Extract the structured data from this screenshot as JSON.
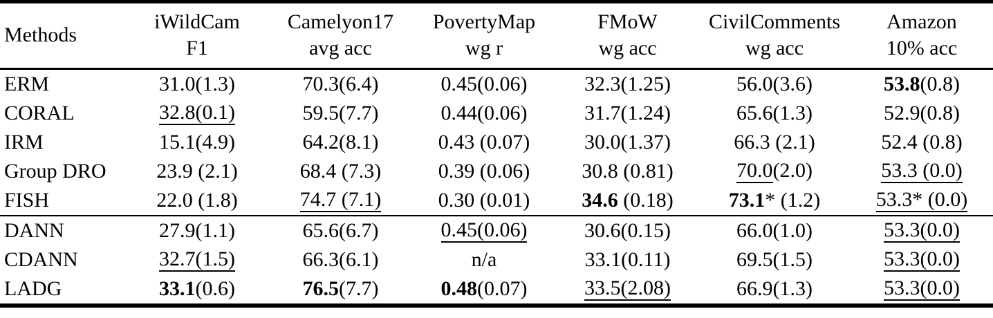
{
  "page": {
    "background_color": "#ffffff",
    "text_color": "#000000",
    "rule_color": "#000000"
  },
  "table": {
    "columns": [
      {
        "id": "methods",
        "line1": "Methods",
        "line2": ""
      },
      {
        "id": "iwildcam",
        "line1": "iWildCam",
        "line2": "F1"
      },
      {
        "id": "camelyon17",
        "line1": "Camelyon17",
        "line2": "avg acc"
      },
      {
        "id": "povertymap",
        "line1": "PovertyMap",
        "line2": "wg r"
      },
      {
        "id": "fmow",
        "line1": "FMoW",
        "line2": "wg acc"
      },
      {
        "id": "civilcomments",
        "line1": "CivilComments",
        "line2": "wg acc"
      },
      {
        "id": "amazon",
        "line1": "Amazon",
        "line2": "10% acc"
      }
    ],
    "rows": [
      {
        "method": "ERM",
        "group_end": false,
        "cells": [
          [
            {
              "text": "31.0(1.3)"
            }
          ],
          [
            {
              "text": "70.3(6.4)"
            }
          ],
          [
            {
              "text": "0.45(0.06)"
            }
          ],
          [
            {
              "text": "32.3(1.25)"
            }
          ],
          [
            {
              "text": "56.0(3.6)"
            }
          ],
          [
            {
              "text": "53.8",
              "bold": true
            },
            {
              "text": "(0.8)"
            }
          ]
        ]
      },
      {
        "method": "CORAL",
        "group_end": false,
        "cells": [
          [
            {
              "text": "32.8(0.1)",
              "underline": true
            }
          ],
          [
            {
              "text": "59.5(7.7)"
            }
          ],
          [
            {
              "text": "0.44(0.06)"
            }
          ],
          [
            {
              "text": "31.7(1.24)"
            }
          ],
          [
            {
              "text": "65.6(1.3)"
            }
          ],
          [
            {
              "text": "52.9(0.8)"
            }
          ]
        ]
      },
      {
        "method": "IRM",
        "group_end": false,
        "cells": [
          [
            {
              "text": "15.1(4.9)"
            }
          ],
          [
            {
              "text": "64.2(8.1)"
            }
          ],
          [
            {
              "text": "0.43 (0.07)"
            }
          ],
          [
            {
              "text": "30.0(1.37)"
            }
          ],
          [
            {
              "text": "66.3 (2.1)"
            }
          ],
          [
            {
              "text": "52.4 (0.8)"
            }
          ]
        ]
      },
      {
        "method": "Group DRO",
        "group_end": false,
        "cells": [
          [
            {
              "text": "23.9 (2.1)"
            }
          ],
          [
            {
              "text": "68.4 (7.3)"
            }
          ],
          [
            {
              "text": "0.39 (0.06)"
            }
          ],
          [
            {
              "text": "30.8 (0.81)"
            }
          ],
          [
            {
              "text": "70.0",
              "underline": true
            },
            {
              "text": "(2.0)"
            }
          ],
          [
            {
              "text": "53.3 (0.0)",
              "underline": true
            }
          ]
        ]
      },
      {
        "method": "FISH",
        "group_end": true,
        "cells": [
          [
            {
              "text": "22.0 (1.8)"
            }
          ],
          [
            {
              "text": "74.7 (7.1)",
              "underline": true
            }
          ],
          [
            {
              "text": "0.30 (0.01)"
            }
          ],
          [
            {
              "text": "34.6",
              "bold": true
            },
            {
              "text": " (0.18)"
            }
          ],
          [
            {
              "text": "73.1",
              "bold": true
            },
            {
              "text": "* (1.2)"
            }
          ],
          [
            {
              "text": "53.3* (0.0)",
              "underline": true
            }
          ]
        ]
      },
      {
        "method": "DANN",
        "group_end": false,
        "cells": [
          [
            {
              "text": "27.9(1.1)"
            }
          ],
          [
            {
              "text": "65.6(6.7)"
            }
          ],
          [
            {
              "text": "0.45(0.06)",
              "underline": true
            }
          ],
          [
            {
              "text": "30.6(0.15)"
            }
          ],
          [
            {
              "text": "66.0(1.0)"
            }
          ],
          [
            {
              "text": "53.3(0.0)",
              "underline": true
            }
          ]
        ]
      },
      {
        "method": "CDANN",
        "group_end": false,
        "cells": [
          [
            {
              "text": "32.7(1.5)",
              "underline": true
            }
          ],
          [
            {
              "text": "66.3(6.1)"
            }
          ],
          [
            {
              "text": "n/a"
            }
          ],
          [
            {
              "text": "33.1(0.11)"
            }
          ],
          [
            {
              "text": "69.5(1.5)"
            }
          ],
          [
            {
              "text": "53.3(0.0)",
              "underline": true
            }
          ]
        ]
      },
      {
        "method": "LADG",
        "group_end": false,
        "cells": [
          [
            {
              "text": "33.1",
              "bold": true
            },
            {
              "text": "(0.6)"
            }
          ],
          [
            {
              "text": "76.5",
              "bold": true
            },
            {
              "text": "(7.7)"
            }
          ],
          [
            {
              "text": "0.48",
              "bold": true
            },
            {
              "text": "(0.07)"
            }
          ],
          [
            {
              "text": "33.5(2.08)",
              "underline": true
            }
          ],
          [
            {
              "text": "66.9(1.3)"
            }
          ],
          [
            {
              "text": "53.3(0.0)",
              "underline": true
            }
          ]
        ]
      }
    ]
  }
}
